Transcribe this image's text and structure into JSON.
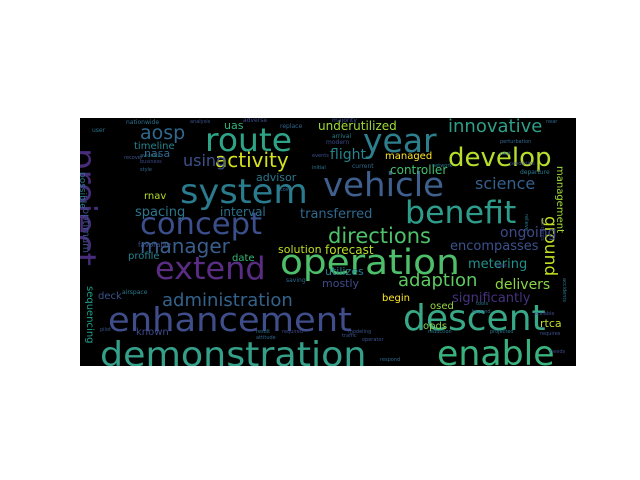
{
  "words": [
    {
      "text": "demonstration",
      "color": "#35a08a"
    },
    {
      "text": "enable",
      "color": "#39b27d"
    },
    {
      "text": "enhancement",
      "color": "#3f4e8a"
    },
    {
      "text": "descent",
      "color": "#38a887"
    },
    {
      "text": "operation",
      "color": "#4dbf6b"
    },
    {
      "text": "extend",
      "color": "#5a2c84"
    },
    {
      "text": "project",
      "color": "#472c7a"
    },
    {
      "text": "concept",
      "color": "#3a4f8c"
    },
    {
      "text": "system",
      "color": "#2a7b8e"
    },
    {
      "text": "vehicle",
      "color": "#3f5f8e"
    },
    {
      "text": "benefit",
      "color": "#2d9c8a"
    },
    {
      "text": "route",
      "color": "#2ea487"
    },
    {
      "text": "year",
      "color": "#2e7f8e"
    },
    {
      "text": "develop",
      "color": "#b6de2a"
    },
    {
      "text": "innovative",
      "color": "#2e9f89"
    },
    {
      "text": "directions",
      "color": "#4dc26b"
    },
    {
      "text": "manager",
      "color": "#3a5e8c"
    },
    {
      "text": "activity",
      "color": "#d5e21c"
    },
    {
      "text": "using",
      "color": "#3b528b"
    },
    {
      "text": "aosp",
      "color": "#31688e"
    },
    {
      "text": "adaption",
      "color": "#5ec962"
    },
    {
      "text": "administration",
      "color": "#33638d"
    },
    {
      "text": "science",
      "color": "#35608d"
    },
    {
      "text": "ground",
      "color": "#c2df23"
    },
    {
      "text": "flight",
      "color": "#25848e"
    },
    {
      "text": "ongoing",
      "color": "#3e4a89"
    },
    {
      "text": "delivers",
      "color": "#8bd646"
    },
    {
      "text": "metering",
      "color": "#21918c"
    },
    {
      "text": "encompasses",
      "color": "#3b528b"
    },
    {
      "text": "significantly",
      "color": "#46327e"
    },
    {
      "text": "transferred",
      "color": "#31688e"
    },
    {
      "text": "interval",
      "color": "#2c718e"
    },
    {
      "text": "spacing",
      "color": "#2a788e"
    },
    {
      "text": "forecast",
      "color": "#b8de29"
    },
    {
      "text": "solution",
      "color": "#c0df25"
    },
    {
      "text": "underutilized",
      "color": "#a0da39"
    },
    {
      "text": "controller",
      "color": "#44bf70"
    },
    {
      "text": "managed",
      "color": "#fde725"
    },
    {
      "text": "utilizes",
      "color": "#277f8e"
    },
    {
      "text": "mostly",
      "color": "#3e4a89"
    },
    {
      "text": "advisor",
      "color": "#2a788e"
    },
    {
      "text": "rtca",
      "color": "#c2df23"
    },
    {
      "text": "opds",
      "color": "#86d549"
    },
    {
      "text": "osed",
      "color": "#98d83e"
    },
    {
      "text": "begin",
      "color": "#fde725"
    },
    {
      "text": "management",
      "color": "#a2da37"
    },
    {
      "text": "sequencing",
      "color": "#1f9e89"
    },
    {
      "text": "deck",
      "color": "#3b528b"
    },
    {
      "text": "profile",
      "color": "#26828e"
    },
    {
      "text": "date",
      "color": "#35b779"
    },
    {
      "text": "rnav",
      "color": "#b5de2b"
    },
    {
      "text": "nasa",
      "color": "#31688e"
    },
    {
      "text": "uas",
      "color": "#32b67a"
    },
    {
      "text": "timeline",
      "color": "#25848e"
    },
    {
      "text": "possible",
      "color": "#2a788e"
    },
    {
      "text": "optimum",
      "color": "#3b528b"
    },
    {
      "text": "known",
      "color": "#3e4989"
    },
    {
      "text": "favorable",
      "color": "#3b528b"
    },
    {
      "text": "reduction",
      "color": "#2a788e"
    },
    {
      "text": "saving",
      "color": "#31688e"
    },
    {
      "text": "airspace",
      "color": "#2a788e"
    },
    {
      "text": "analysis",
      "color": "#3b528b"
    },
    {
      "text": "nationwide",
      "color": "#2c718e"
    },
    {
      "text": "adverse",
      "color": "#3e4a89"
    },
    {
      "text": "majority",
      "color": "#3b528b"
    },
    {
      "text": "arrival",
      "color": "#26828e"
    },
    {
      "text": "departure",
      "color": "#2a788e"
    },
    {
      "text": "current",
      "color": "#31688e"
    },
    {
      "text": "network",
      "color": "#2a788e"
    },
    {
      "text": "modern",
      "color": "#3e4a89"
    },
    {
      "text": "avionics",
      "color": "#2a788e"
    },
    {
      "text": "business",
      "color": "#3e4a89"
    },
    {
      "text": "style",
      "color": "#31688e"
    },
    {
      "text": "recover",
      "color": "#3b528b"
    },
    {
      "text": "user",
      "color": "#2c718e"
    },
    {
      "text": "replace",
      "color": "#31688e"
    },
    {
      "text": "events",
      "color": "#3b528b"
    },
    {
      "text": "initial",
      "color": "#2a788e"
    },
    {
      "text": "joint",
      "color": "#3e4a89"
    },
    {
      "text": "cost",
      "color": "#31688e"
    },
    {
      "text": "required",
      "color": "#3e4a89"
    },
    {
      "text": "result",
      "color": "#2c718e"
    },
    {
      "text": "modeling",
      "color": "#3b528b"
    },
    {
      "text": "attitude",
      "color": "#31688e"
    },
    {
      "text": "projected",
      "color": "#2a788e"
    },
    {
      "text": "scalable",
      "color": "#3e4a89"
    },
    {
      "text": "beyond",
      "color": "#2c718e"
    },
    {
      "text": "operator",
      "color": "#3b528b"
    },
    {
      "text": "perturbation",
      "color": "#31688e"
    },
    {
      "text": "predictive",
      "color": "#3e4a89"
    },
    {
      "text": "tools",
      "color": "#2a788e"
    },
    {
      "text": "requires",
      "color": "#3b528b"
    },
    {
      "text": "respond",
      "color": "#31688e"
    },
    {
      "text": "needs",
      "color": "#3e4a89"
    },
    {
      "text": "past",
      "color": "#2c718e"
    },
    {
      "text": "pilot",
      "color": "#3b528b"
    },
    {
      "text": "accidents",
      "color": "#2a788e"
    },
    {
      "text": "incidents",
      "color": "#3e4a89"
    },
    {
      "text": "near",
      "color": "#31688e"
    },
    {
      "text": "traffic",
      "color": "#3b528b"
    },
    {
      "text": "relieve",
      "color": "#2a788e"
    }
  ]
}
